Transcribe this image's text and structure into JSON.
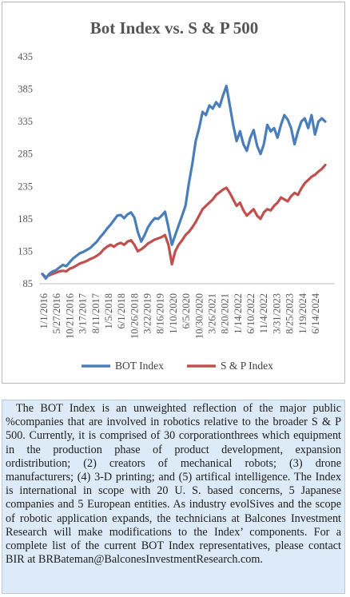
{
  "chart_data": {
    "type": "line",
    "title": "Bot Index vs. S & P 500",
    "ylim": [
      85,
      435
    ],
    "yticks": [
      85,
      135,
      185,
      235,
      285,
      335,
      385,
      435
    ],
    "x_tick_labels": [
      "1/1/2016",
      "5/27/2016",
      "10/21/2016",
      "3/17/2017",
      "8/11/2017",
      "1/5/2018",
      "6/1/2018",
      "10/26/2018",
      "3/22/2019",
      "8/16/2019",
      "1/10/2020",
      "6/5/2020",
      "10/30/2020",
      "3/26/2021",
      "8/20/2021",
      "1/14/2022",
      "6/10/2022",
      "11/4/2022",
      "3/31/2023",
      "8/25/2023",
      "1/19/2024",
      "6/14/2024"
    ],
    "grid": false,
    "legend_position": "bottom",
    "series": [
      {
        "name": "BOT Index",
        "color": "#4a7ebb",
        "values": [
          100,
          93,
          100,
          104,
          106,
          110,
          114,
          112,
          118,
          124,
          128,
          132,
          134,
          137,
          140,
          145,
          150,
          157,
          163,
          170,
          176,
          183,
          190,
          191,
          186,
          192,
          195,
          187,
          165,
          150,
          160,
          172,
          180,
          186,
          185,
          190,
          196,
          172,
          145,
          160,
          175,
          190,
          205,
          240,
          270,
          305,
          325,
          350,
          345,
          360,
          355,
          365,
          358,
          375,
          390,
          360,
          330,
          305,
          320,
          300,
          290,
          310,
          322,
          298,
          285,
          300,
          330,
          320,
          325,
          310,
          330,
          345,
          338,
          325,
          300,
          320,
          335,
          340,
          325,
          345,
          315,
          335,
          340,
          335
        ]
      },
      {
        "name": "S & P Index",
        "color": "#c0504d",
        "values": [
          100,
          95,
          98,
          100,
          102,
          104,
          105,
          104,
          108,
          110,
          113,
          116,
          118,
          120,
          123,
          125,
          128,
          132,
          138,
          142,
          145,
          142,
          146,
          148,
          145,
          150,
          152,
          145,
          135,
          138,
          142,
          147,
          150,
          153,
          155,
          157,
          160,
          145,
          115,
          135,
          145,
          152,
          160,
          165,
          172,
          180,
          190,
          200,
          205,
          210,
          215,
          222,
          226,
          230,
          233,
          225,
          215,
          205,
          210,
          198,
          190,
          195,
          200,
          190,
          185,
          195,
          200,
          198,
          205,
          210,
          218,
          215,
          212,
          220,
          225,
          222,
          232,
          240,
          245,
          250,
          253,
          258,
          262,
          268
        ]
      }
    ]
  },
  "description": {
    "text": "The BOT Index is an unweighted reflection of the major public %companies that are involved in robotics relative to the broader S & P 500. Currently, it is comprised of 30 corporationthrees which equipment in the production phase of product development, expansion ordistribution; (2) creators of mechanical robots; (3) drone manufacturers; (4) 3-D printing; and (5) artifical intelligence. The Index is international in scope with 20 U. S. based concerns, 5 Japanese companies and 5 European entities. As industry evolSives and the scope of robotic application expands, the technicians at Balcones Investment Research will make modifications to the Index’ components. For a  complete list of the current BOT Index representatives, please contact BIR at BRBateman@BalconesInvestmentResearch.com."
  }
}
